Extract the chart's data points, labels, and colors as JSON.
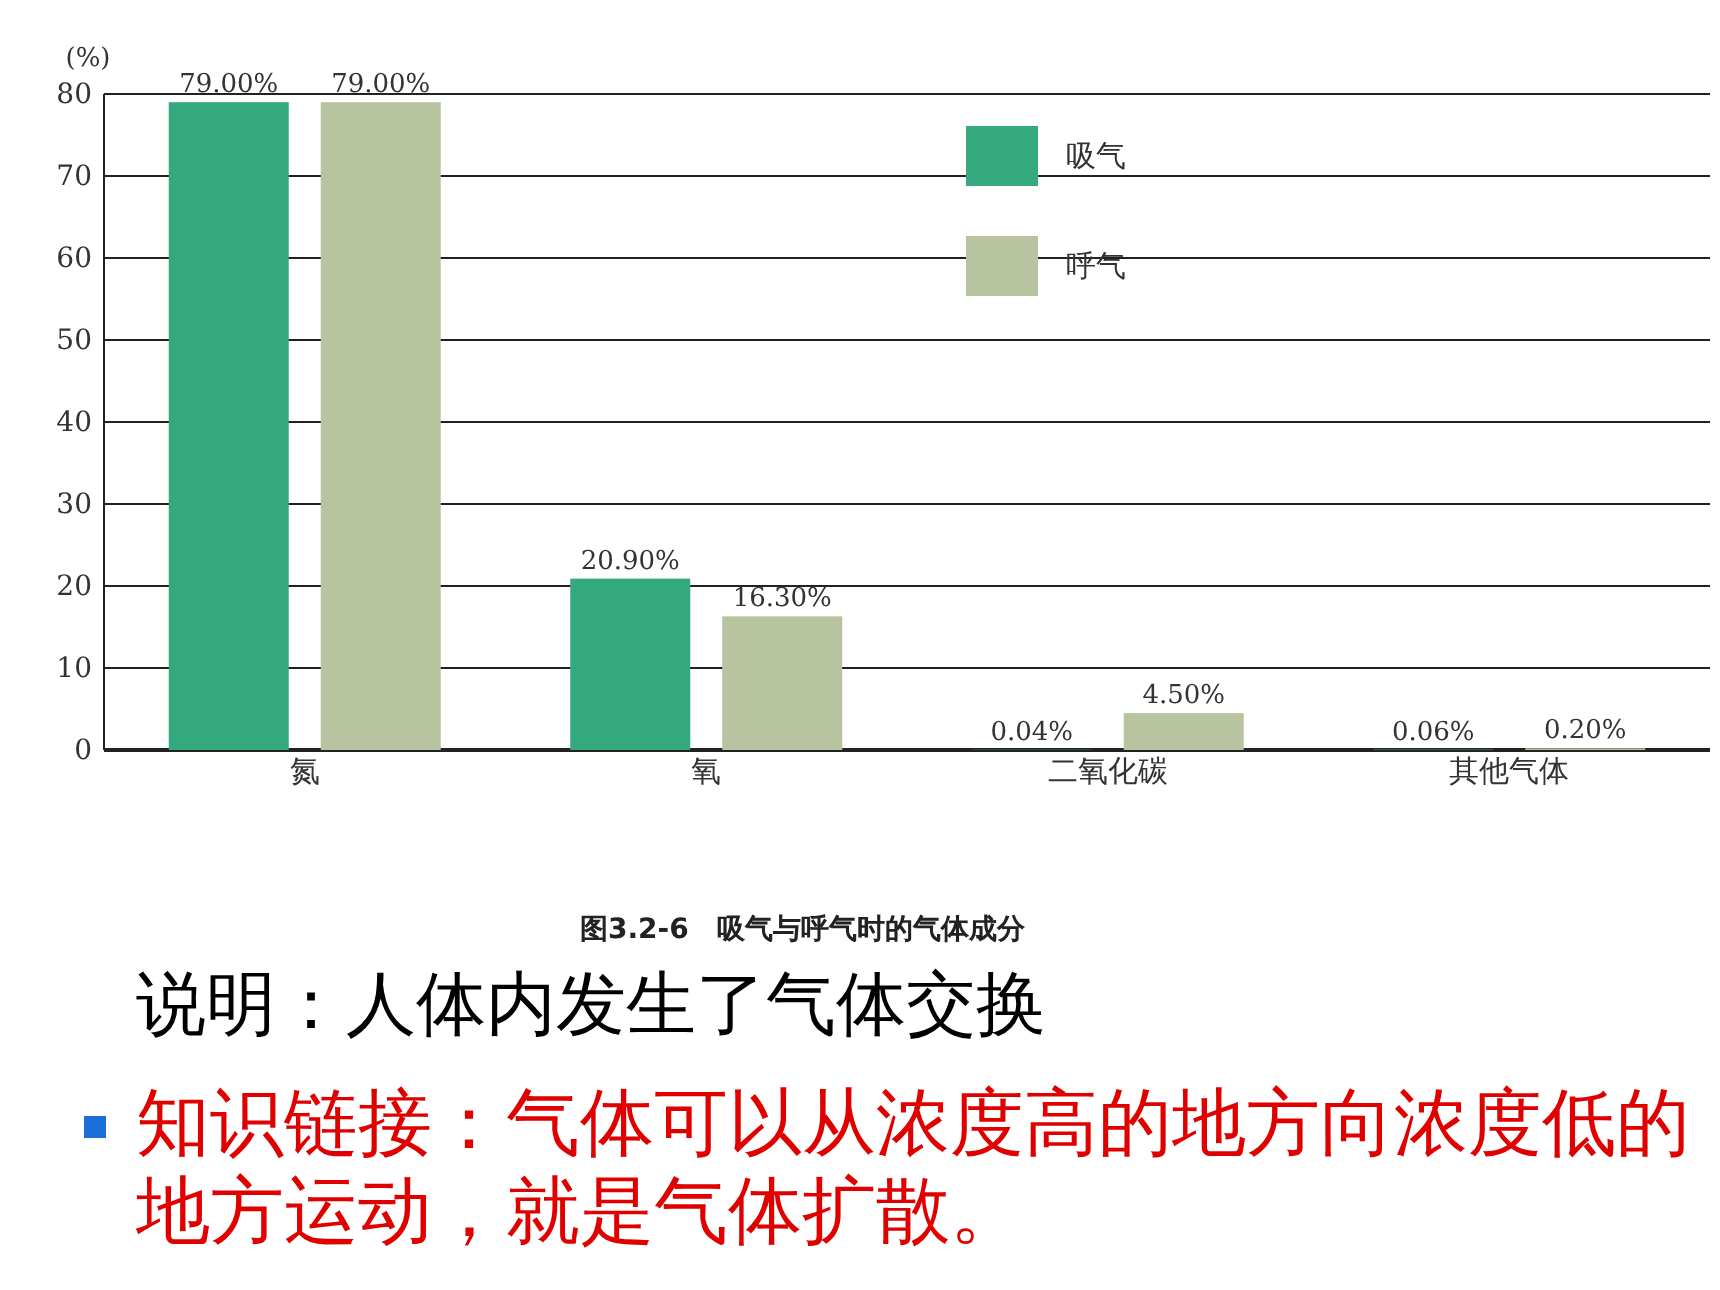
{
  "chart_data": {
    "type": "bar",
    "ylabel": "(%)",
    "categories": [
      "氮",
      "氧",
      "二氧化碳",
      "其他气体"
    ],
    "series": [
      {
        "name": "吸气",
        "color": "#35a97e",
        "values": [
          79,
          20.9,
          0.04,
          0.06
        ],
        "value_labels": [
          "79.00%",
          "20.90%",
          "0.04%",
          "0.06%"
        ]
      },
      {
        "name": "呼气",
        "color": "#b8c4a0",
        "values": [
          79,
          16.3,
          4.5,
          0.2
        ],
        "value_labels": [
          "79.00%",
          "16.30%",
          "4.50%",
          "0.20%"
        ]
      }
    ],
    "ylim": [
      0,
      80
    ],
    "yticks": [
      0,
      10,
      20,
      30,
      40,
      50,
      60,
      70,
      80
    ],
    "grid": "y",
    "legend": "top right",
    "annotations": [
      "图3.2-6　吸气与呼气时的气体成分",
      "说明：人体内发生了气体交换",
      "知识链接：气体可以从浓度高的地方向浓度低的地方运动，就是气体扩散。"
    ]
  }
}
